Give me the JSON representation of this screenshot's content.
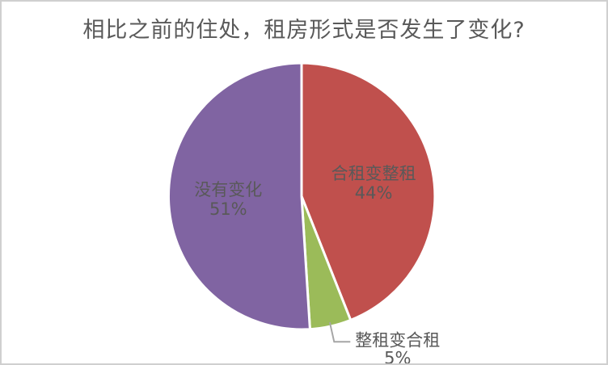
{
  "frame": {
    "border_color": "#cfcfcf",
    "background": "#ffffff"
  },
  "chart_data": {
    "type": "pie",
    "title": "相比之前的住处，租房形式是否发生了变化?",
    "start_angle_deg": 0,
    "direction": "clockwise",
    "total": 100,
    "legend": "none",
    "slices": [
      {
        "label": "合租变整租",
        "value": 44,
        "percent_label": "44%",
        "color": "#C0504D",
        "label_placement": "inside"
      },
      {
        "label": "整租变合租",
        "value": 5,
        "percent_label": "5%",
        "color": "#9BBB59",
        "label_placement": "outside"
      },
      {
        "label": "没有变化",
        "value": 51,
        "percent_label": "51%",
        "color": "#8064A2",
        "label_placement": "inside"
      }
    ],
    "styles": {
      "title_color": "#595959",
      "label_text_color": "#595959",
      "slice_border_color": "#FFFFFF",
      "leader_line_color": "#A6A6A6"
    }
  }
}
